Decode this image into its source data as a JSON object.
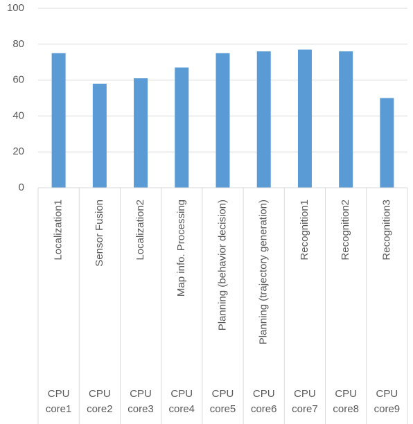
{
  "chart_data": {
    "type": "bar",
    "categories": [
      "Localization1",
      "Sensor Fusion",
      "Localization2",
      "Map info. Processing",
      "Planning (behavior decision)",
      "Planning (trajectory generation)",
      "Recognition1",
      "Recognition2",
      "Recognition3"
    ],
    "category_groups": [
      "CPU core1",
      "CPU core2",
      "CPU core3",
      "CPU core4",
      "CPU core5",
      "CPU core6",
      "CPU core7",
      "CPU core8",
      "CPU core9"
    ],
    "values": [
      75,
      58,
      61,
      67,
      75,
      76,
      77,
      76,
      50
    ],
    "color": "#5b9bd5",
    "ylim": [
      0,
      100
    ],
    "yticks": [
      0,
      20,
      40,
      60,
      80,
      100
    ],
    "grid": true
  }
}
